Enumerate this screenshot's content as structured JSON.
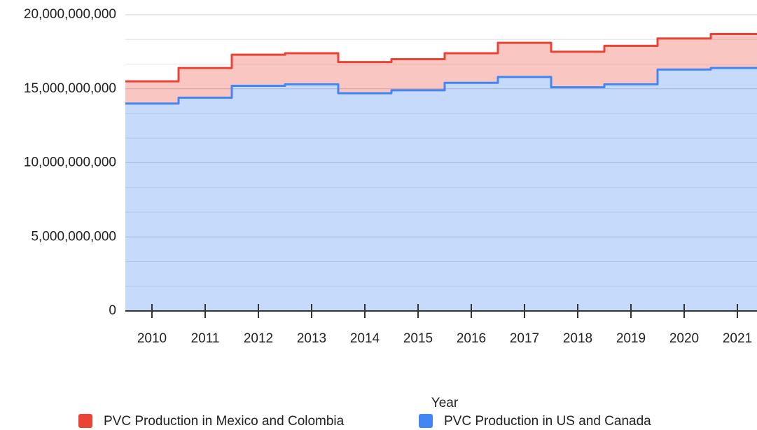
{
  "chart_data": {
    "type": "stepped-area",
    "x_label": "Year",
    "categories": [
      "2010",
      "2011",
      "2012",
      "2013",
      "2014",
      "2015",
      "2016",
      "2017",
      "2018",
      "2019",
      "2020",
      "2021"
    ],
    "series": [
      {
        "name": "PVC Production in Mexico and Colombia",
        "color": "#ea4335",
        "values": [
          1500000000,
          2000000000,
          2100000000,
          2100000000,
          2100000000,
          2100000000,
          2000000000,
          2300000000,
          2400000000,
          2600000000,
          2100000000,
          2300000000
        ]
      },
      {
        "name": "PVC Production in US and Canada",
        "color": "#4285f4",
        "values": [
          14000000000,
          14400000000,
          15200000000,
          15300000000,
          14700000000,
          14900000000,
          15400000000,
          15800000000,
          15100000000,
          15300000000,
          16300000000,
          16400000000
        ]
      }
    ],
    "stacked": true,
    "ylim": [
      0,
      20000000000
    ],
    "yticks": [
      0,
      {
        "value": 5000000000,
        "label": "5,000,000,000"
      },
      {
        "value": 10000000000,
        "label": "10,000,000,000"
      },
      {
        "value": 15000000000,
        "label": "15,000,000,000"
      },
      {
        "value": 20000000000,
        "label": "20,000,000,000"
      }
    ],
    "minor_grid_divisions": 3,
    "grid": true,
    "legend": "bottom"
  }
}
